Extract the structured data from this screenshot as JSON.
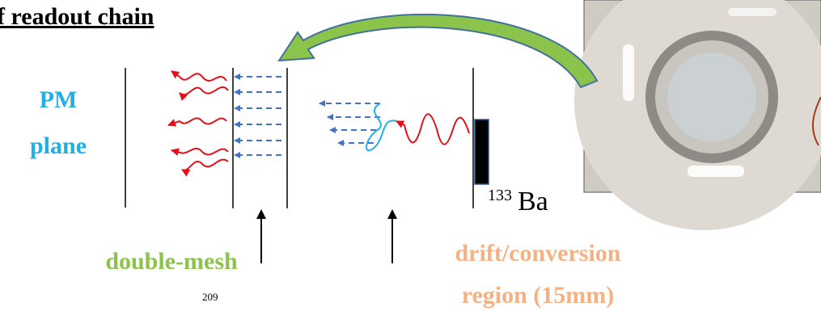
{
  "title": "f readout chain",
  "labels": {
    "pm_plane": [
      "PM",
      "plane"
    ],
    "double_mesh": "double-mesh",
    "drift_region": [
      "drift/conversion",
      "region (15mm)"
    ],
    "source": {
      "mass_number": "133",
      "element": "Ba"
    },
    "footnote_superscript": "209"
  }
}
